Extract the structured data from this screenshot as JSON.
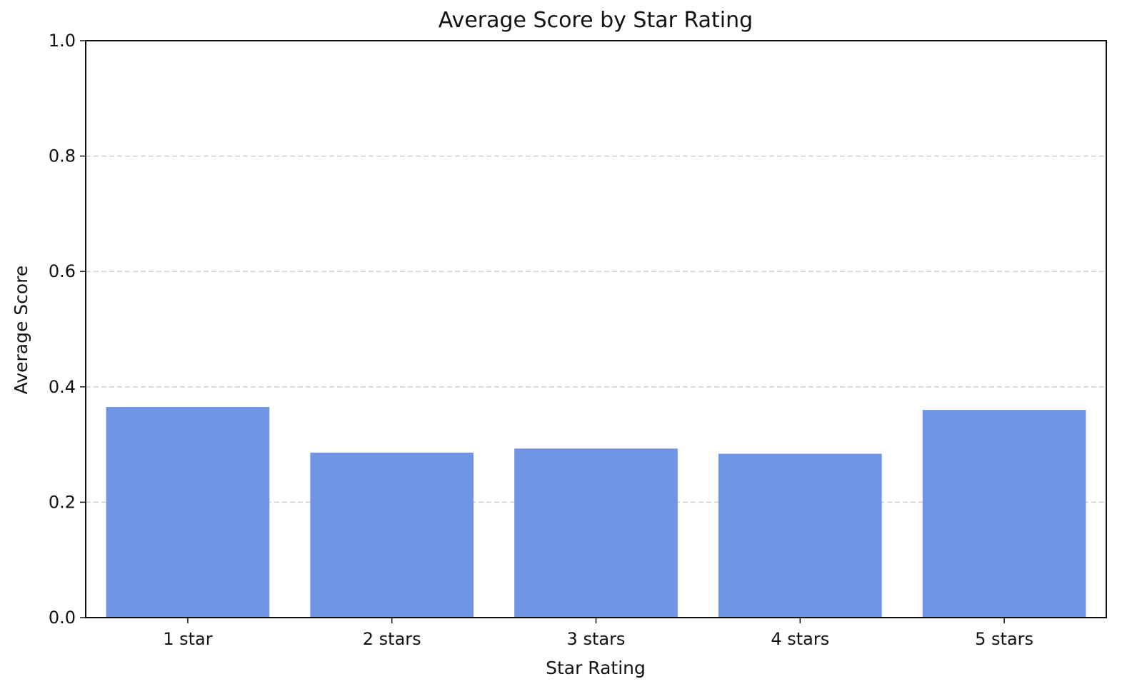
{
  "chart_data": {
    "type": "bar",
    "title": "Average Score by Star Rating",
    "xlabel": "Star Rating",
    "ylabel": "Average Score",
    "categories": [
      "1 star",
      "2 stars",
      "3 stars",
      "4 stars",
      "5 stars"
    ],
    "values": [
      0.365,
      0.286,
      0.293,
      0.284,
      0.36
    ],
    "ylim": [
      0.0,
      1.0
    ],
    "yticks": [
      "0.0",
      "0.2",
      "0.4",
      "0.6",
      "0.8",
      "1.0"
    ],
    "grid": "y dashed",
    "bar_color": "#6f94e3",
    "grid_color": "#cfcfcf",
    "axis_color": "#111111"
  }
}
